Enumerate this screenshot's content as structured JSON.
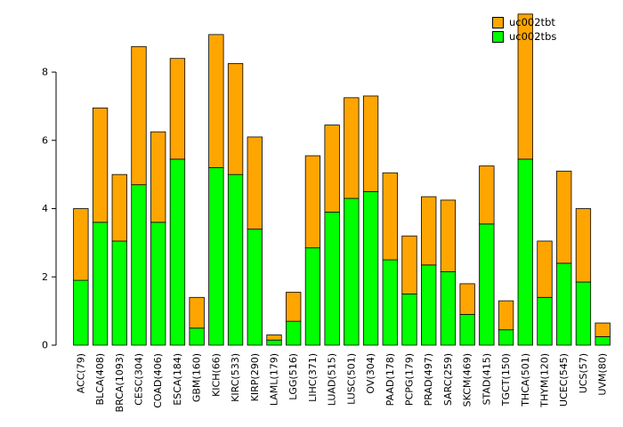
{
  "legend": {
    "items": [
      {
        "label": "uc002tbt",
        "color": "#FFA500"
      },
      {
        "label": "uc002tbs",
        "color": "#00FF00"
      }
    ]
  },
  "chart_data": {
    "type": "bar",
    "stacked": true,
    "title": "",
    "xlabel": "",
    "ylabel": "",
    "grid": false,
    "legend_position": "top-right",
    "ylim": [
      0,
      9.8
    ],
    "yticks": [
      0,
      2,
      4,
      6,
      8
    ],
    "bar_border_color": "#000000",
    "categories": [
      "ACC(79)",
      "BLCA(408)",
      "BRCA(1093)",
      "CESC(304)",
      "COAD(406)",
      "ESCA(184)",
      "GBM(160)",
      "KICH(66)",
      "KIRC(533)",
      "KIRP(290)",
      "LAML(179)",
      "LGG(516)",
      "LIHC(371)",
      "LUAD(515)",
      "LUSC(501)",
      "OV(304)",
      "PAAD(178)",
      "PCPG(179)",
      "PRAD(497)",
      "SARC(259)",
      "SKCM(469)",
      "STAD(415)",
      "TGCT(150)",
      "THCA(501)",
      "THYM(120)",
      "UCEC(545)",
      "UCS(57)",
      "UVM(80)"
    ],
    "series": [
      {
        "name": "uc002tbs",
        "color": "#00FF00",
        "values": [
          1.9,
          3.6,
          3.05,
          4.7,
          3.6,
          5.45,
          0.5,
          5.2,
          5.0,
          3.4,
          0.15,
          0.7,
          2.85,
          3.9,
          4.3,
          4.5,
          2.5,
          1.5,
          2.35,
          2.15,
          0.9,
          3.55,
          0.45,
          5.45,
          1.4,
          2.4,
          1.85,
          0.25
        ]
      },
      {
        "name": "uc002tbt",
        "color": "#FFA500",
        "values": [
          2.1,
          3.35,
          1.95,
          4.05,
          2.65,
          2.95,
          0.9,
          3.9,
          3.25,
          2.7,
          0.15,
          0.85,
          2.7,
          2.55,
          2.95,
          2.8,
          2.55,
          1.7,
          2.0,
          2.1,
          0.9,
          1.7,
          0.85,
          4.25,
          1.65,
          2.7,
          2.15,
          0.4
        ]
      }
    ]
  }
}
